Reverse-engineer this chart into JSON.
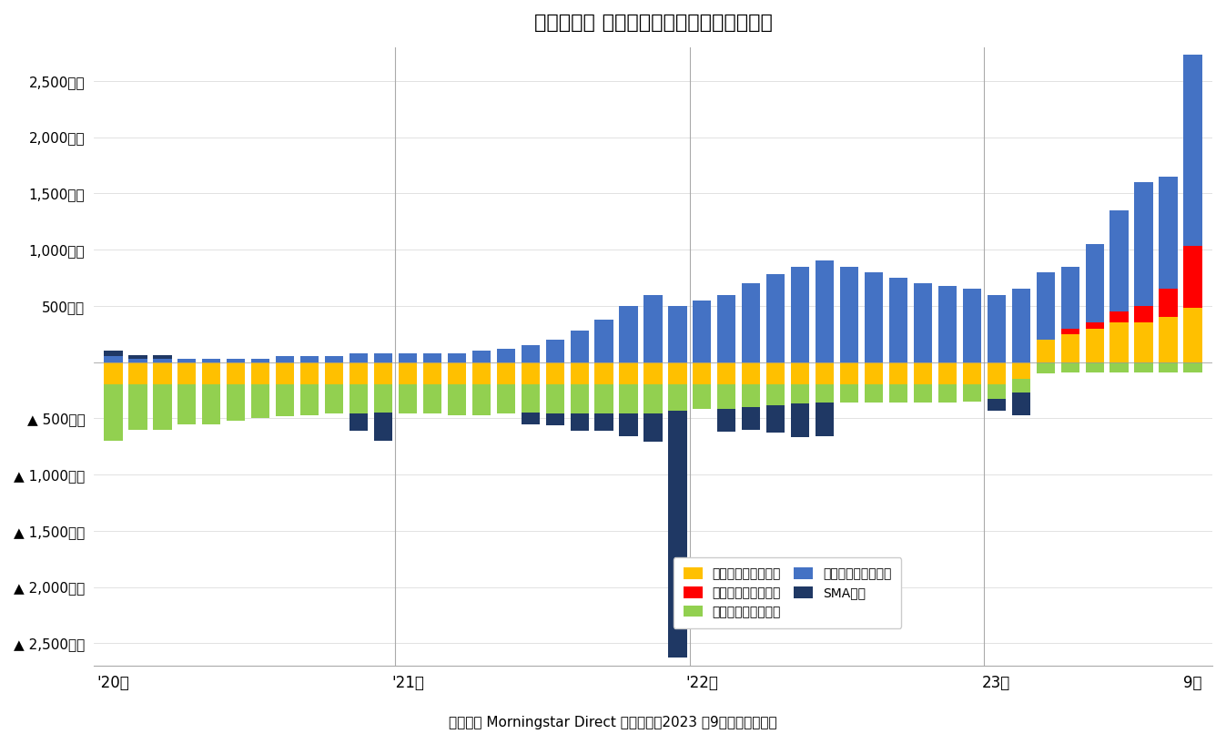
{
  "title": "》図表４》 外国債券ファンドの資金流出入",
  "title_display": "【図表４】 外国債券ファンドの資金流出入",
  "subtitle": "（資料） Morningstar Direct より作成。2023 年9月のみ推計値。",
  "colors": {
    "hedge_none_existing": "#FFC000",
    "hedge_none_new": "#FF0000",
    "hedge_yes_existing": "#92D050",
    "hedge_yes_new": "#4472C4",
    "sma": "#1F3864"
  },
  "legend_labels": [
    "ヘッジなし（既設）",
    "ヘッジなし（新設）",
    "ヘッジあり（既設）",
    "ヘッジあり（新設）",
    "SMA専用"
  ],
  "yticks": [
    -2500,
    -2000,
    -1500,
    -1000,
    -500,
    0,
    500,
    1000,
    1500,
    2000,
    2500
  ],
  "ytick_labels": [
    "▲ 2,500億円",
    "▲ 2,000億円",
    "▲ 1,500億円",
    "▲ 1,000億円",
    "▲ 500億円",
    "",
    "500億円",
    "1,000億円",
    "1,500億円",
    "2,000億円",
    "2,500億円"
  ],
  "xtick_labels": [
    "'20年",
    "'21年",
    "'22年",
    "23年",
    "9月"
  ],
  "vlines": [
    12,
    24,
    36
  ],
  "bar_width": 0.75,
  "months": 45,
  "data": {
    "hedge_none_existing": [
      -200,
      -200,
      -200,
      -200,
      -200,
      -200,
      -200,
      -200,
      -200,
      -200,
      -200,
      -200,
      -200,
      -200,
      -200,
      -200,
      -200,
      -200,
      -200,
      -200,
      -200,
      -200,
      -200,
      -200,
      -200,
      -200,
      -200,
      -200,
      -200,
      -200,
      -200,
      -200,
      -200,
      -200,
      -200,
      -200,
      -200,
      -150,
      200,
      250,
      300,
      350,
      350,
      400,
      480
    ],
    "hedge_none_new": [
      0,
      0,
      0,
      0,
      0,
      0,
      0,
      0,
      0,
      0,
      0,
      0,
      0,
      0,
      0,
      0,
      0,
      0,
      0,
      0,
      0,
      0,
      0,
      0,
      0,
      0,
      0,
      0,
      0,
      0,
      0,
      0,
      0,
      0,
      0,
      0,
      0,
      0,
      0,
      50,
      50,
      100,
      150,
      250,
      550
    ],
    "hedge_yes_existing": [
      -500,
      -400,
      -400,
      -350,
      -350,
      -320,
      -300,
      -280,
      -270,
      -260,
      -260,
      -250,
      -260,
      -260,
      -270,
      -270,
      -260,
      -250,
      -260,
      -260,
      -260,
      -260,
      -260,
      -230,
      -220,
      -220,
      -200,
      -180,
      -170,
      -160,
      -160,
      -160,
      -160,
      -160,
      -160,
      -150,
      -130,
      -120,
      -100,
      -90,
      -90,
      -90,
      -90,
      -90,
      -90
    ],
    "hedge_yes_new": [
      50,
      30,
      30,
      30,
      30,
      30,
      30,
      50,
      50,
      50,
      80,
      80,
      80,
      80,
      80,
      100,
      120,
      150,
      200,
      280,
      380,
      500,
      600,
      500,
      550,
      600,
      700,
      780,
      850,
      900,
      850,
      800,
      750,
      700,
      680,
      650,
      600,
      650,
      600,
      550,
      700,
      900,
      1100,
      1000,
      1700
    ],
    "sma": [
      50,
      30,
      30,
      0,
      0,
      0,
      0,
      0,
      0,
      0,
      -150,
      -250,
      0,
      0,
      0,
      0,
      0,
      -100,
      -100,
      -150,
      -150,
      -200,
      -250,
      -2200,
      0,
      -200,
      -200,
      -250,
      -300,
      -300,
      0,
      0,
      0,
      0,
      0,
      0,
      -100,
      -200,
      0,
      0,
      0,
      0,
      0,
      0,
      0
    ]
  }
}
